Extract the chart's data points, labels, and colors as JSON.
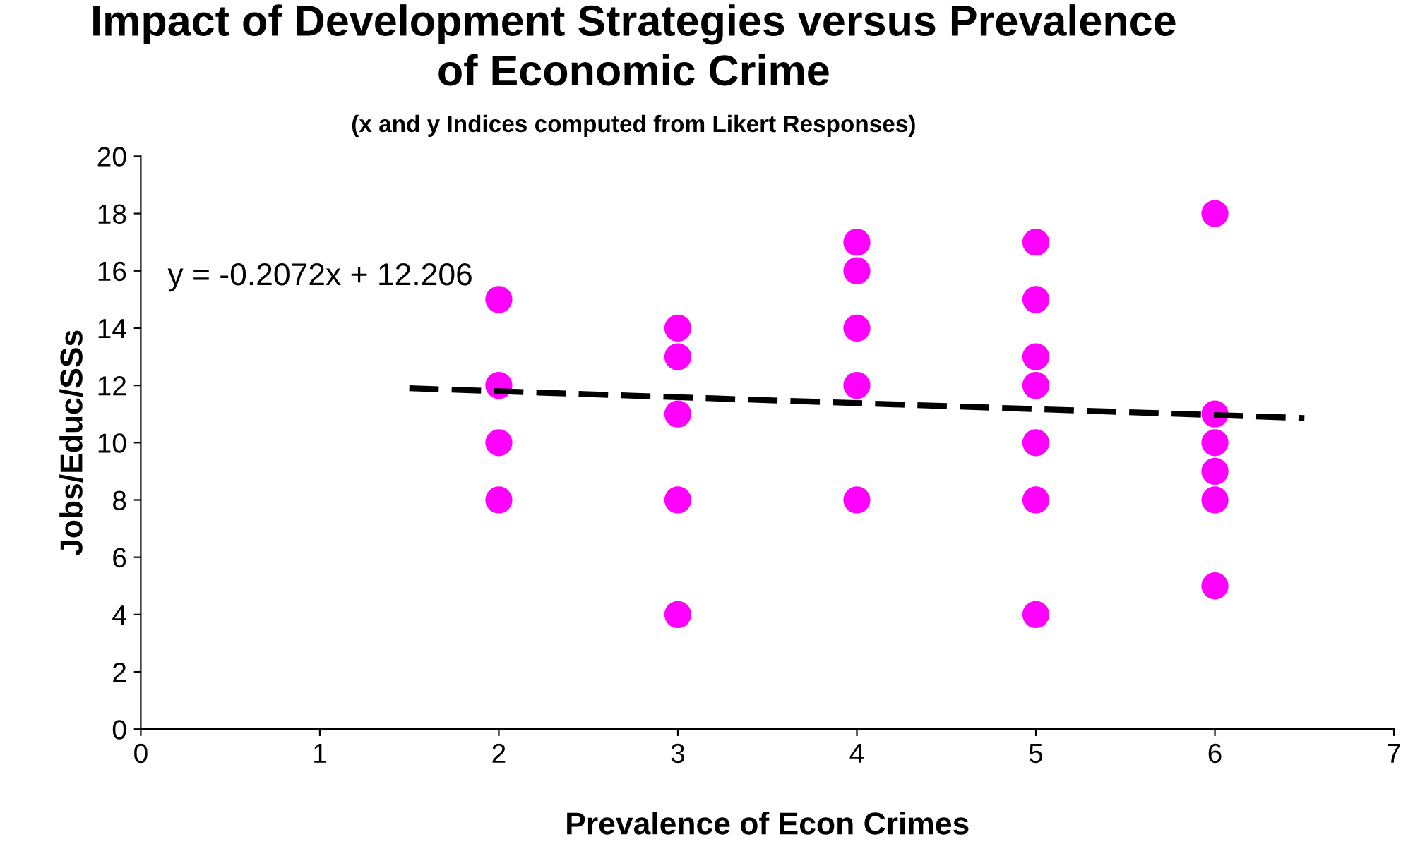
{
  "chart_data": {
    "type": "scatter",
    "title": "Impact of Development Strategies versus Prevalence\nof Economic Crime",
    "subtitle": "(x and y Indices computed from Likert Responses)",
    "xlabel": "Prevalence of Econ Crimes",
    "ylabel": "Jobs/Educ/SSs",
    "series": [
      {
        "color": "#ff00ff",
        "marker": "circle",
        "x": [
          2,
          2,
          2,
          2,
          3,
          3,
          3,
          3,
          3,
          4,
          4,
          4,
          4,
          4,
          5,
          5,
          5,
          5,
          5,
          5,
          5,
          6,
          6,
          6,
          6,
          6,
          6
        ],
        "values": [
          15,
          12,
          10,
          8,
          14,
          13,
          11,
          8,
          4,
          17,
          16,
          14,
          12,
          8,
          17,
          15,
          13,
          12,
          10,
          8,
          4,
          18,
          11,
          10,
          9,
          8,
          5
        ]
      },
      {
        "type": "line",
        "color": "#000000",
        "line_style": "dashed",
        "marker": "none",
        "x": [
          1.5,
          6.5
        ],
        "values": [
          11.9,
          10.86
        ]
      }
    ],
    "annotations": [
      "y = -0.2072x + 12.206"
    ],
    "xlim": [
      0,
      7
    ],
    "xticks": [
      0,
      1,
      2,
      3,
      4,
      5,
      6,
      7
    ],
    "ylim": [
      0,
      20
    ],
    "yticks": [
      0,
      2,
      4,
      6,
      8,
      10,
      12,
      14,
      16,
      18,
      20
    ],
    "grid": false,
    "legend": false
  }
}
